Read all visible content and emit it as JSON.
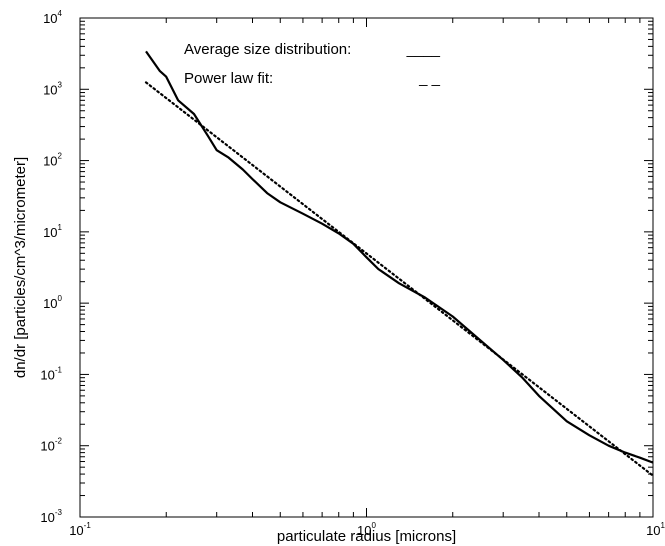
{
  "chart_data": {
    "type": "line",
    "title": "",
    "xlabel": "particulate radius [microns]",
    "ylabel": "dn/dr [particles/cm^3/micrometer]",
    "xscale": "log",
    "yscale": "log",
    "xlim": [
      0.1,
      10
    ],
    "ylim": [
      0.001,
      10000
    ],
    "grid": false,
    "legend_position": "top-right",
    "x_ticks": [
      {
        "base": "10",
        "exp": "-1",
        "value": 0.1
      },
      {
        "base": "10",
        "exp": "0",
        "value": 1
      },
      {
        "base": "10",
        "exp": "1",
        "value": 10
      }
    ],
    "y_ticks": [
      {
        "base": "10",
        "exp": "-3",
        "value": 0.001
      },
      {
        "base": "10",
        "exp": "-2",
        "value": 0.01
      },
      {
        "base": "10",
        "exp": "-1",
        "value": 0.1
      },
      {
        "base": "10",
        "exp": "0",
        "value": 1
      },
      {
        "base": "10",
        "exp": "1",
        "value": 10
      },
      {
        "base": "10",
        "exp": "2",
        "value": 100
      },
      {
        "base": "10",
        "exp": "3",
        "value": 1000
      },
      {
        "base": "10",
        "exp": "4",
        "value": 10000
      }
    ],
    "series": [
      {
        "name": "Average size distribution:",
        "legend_symbol": "____",
        "style": "solid",
        "x": [
          0.17,
          0.19,
          0.2,
          0.22,
          0.25,
          0.28,
          0.3,
          0.33,
          0.37,
          0.4,
          0.45,
          0.5,
          0.6,
          0.7,
          0.8,
          0.9,
          1.0,
          1.1,
          1.3,
          1.6,
          2.0,
          2.5,
          3.0,
          3.5,
          4.0,
          5.0,
          6.0,
          7.0,
          8.0,
          9.0,
          10.0
        ],
        "y": [
          3400,
          1800,
          1500,
          700,
          450,
          220,
          140,
          110,
          75,
          55,
          35,
          26,
          18,
          13,
          9.5,
          6.8,
          4.4,
          3.0,
          1.9,
          1.2,
          0.65,
          0.3,
          0.16,
          0.09,
          0.05,
          0.022,
          0.014,
          0.01,
          0.008,
          0.0068,
          0.0058
        ]
      },
      {
        "name": "Power law fit:",
        "legend_symbol": "_ _",
        "style": "dotted",
        "x": [
          0.17,
          10.0
        ],
        "y": [
          1250,
          0.0038
        ]
      }
    ]
  }
}
